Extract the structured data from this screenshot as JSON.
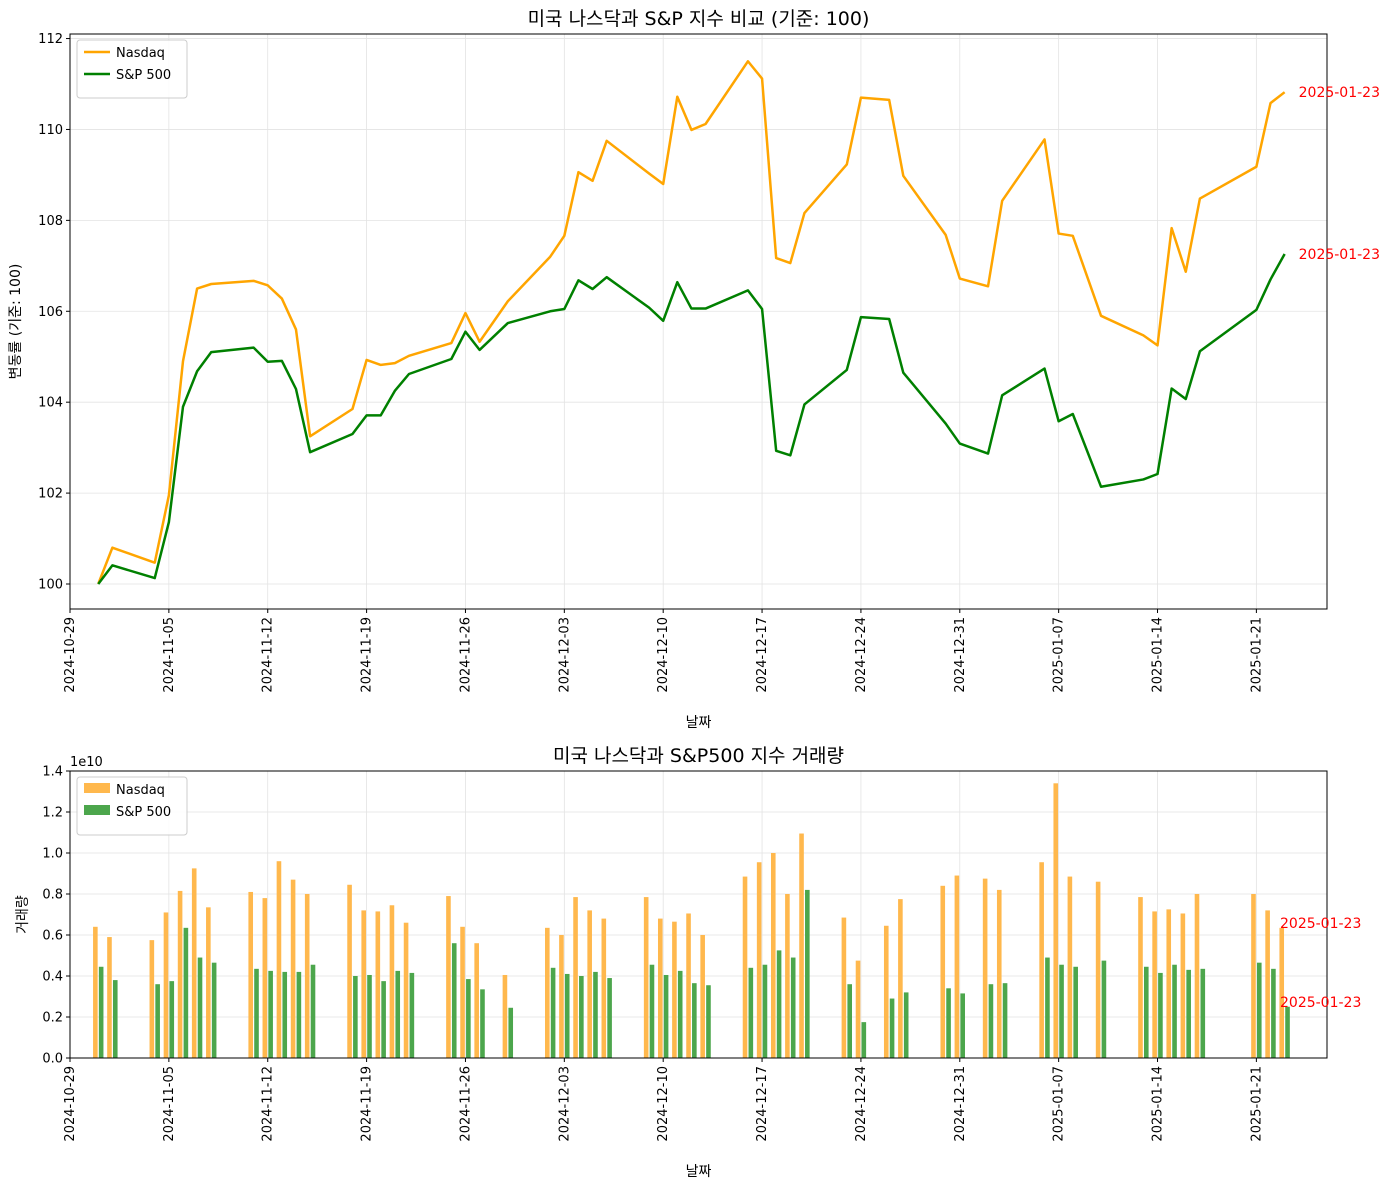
{
  "chart_data": [
    {
      "type": "line",
      "title": "미국 나스닥과 S&P 지수 비교 (기준: 100)",
      "xlabel": "날짜",
      "ylabel": "변동률 (기준: 100)",
      "xlim": [
        "2024-10-29",
        "2025-01-26"
      ],
      "ylim": [
        99.45,
        112.1
      ],
      "yticks": [
        100,
        102,
        104,
        106,
        108,
        110,
        112
      ],
      "xticks": [
        "2024-10-29",
        "2024-11-05",
        "2024-11-12",
        "2024-11-19",
        "2024-11-26",
        "2024-12-03",
        "2024-12-10",
        "2024-12-17",
        "2024-12-24",
        "2024-12-31",
        "2025-01-07",
        "2025-01-14",
        "2025-01-21"
      ],
      "grid": true,
      "legend": "top-left",
      "dates": [
        "2024-10-31",
        "2024-11-01",
        "2024-11-04",
        "2024-11-05",
        "2024-11-06",
        "2024-11-07",
        "2024-11-08",
        "2024-11-11",
        "2024-11-12",
        "2024-11-13",
        "2024-11-14",
        "2024-11-15",
        "2024-11-18",
        "2024-11-19",
        "2024-11-20",
        "2024-11-21",
        "2024-11-22",
        "2024-11-25",
        "2024-11-26",
        "2024-11-27",
        "2024-11-29",
        "2024-12-02",
        "2024-12-03",
        "2024-12-04",
        "2024-12-05",
        "2024-12-06",
        "2024-12-09",
        "2024-12-10",
        "2024-12-11",
        "2024-12-12",
        "2024-12-13",
        "2024-12-16",
        "2024-12-17",
        "2024-12-18",
        "2024-12-19",
        "2024-12-20",
        "2024-12-23",
        "2024-12-24",
        "2024-12-26",
        "2024-12-27",
        "2024-12-30",
        "2024-12-31",
        "2025-01-02",
        "2025-01-03",
        "2025-01-06",
        "2025-01-07",
        "2025-01-08",
        "2025-01-10",
        "2025-01-13",
        "2025-01-14",
        "2025-01-15",
        "2025-01-16",
        "2025-01-17",
        "2025-01-21",
        "2025-01-22",
        "2025-01-23"
      ],
      "series": [
        {
          "name": "Nasdaq",
          "color": "#FFA500",
          "values": [
            100.0,
            100.8,
            100.47,
            101.95,
            104.9,
            106.5,
            106.6,
            106.67,
            106.57,
            106.28,
            105.6,
            103.25,
            103.85,
            104.93,
            104.82,
            104.86,
            105.02,
            105.3,
            105.96,
            105.33,
            106.22,
            107.2,
            107.66,
            109.06,
            108.87,
            109.75,
            109.03,
            108.8,
            110.72,
            109.99,
            110.12,
            111.5,
            111.12,
            107.17,
            107.06,
            108.16,
            109.23,
            110.7,
            110.65,
            108.98,
            107.68,
            106.72,
            106.55,
            108.43,
            109.78,
            107.71,
            107.66,
            105.9,
            105.47,
            105.25,
            107.83,
            106.87,
            108.48,
            109.18,
            110.58,
            110.82
          ]
        },
        {
          "name": "S&P 500",
          "color": "#008000",
          "values": [
            100.0,
            100.41,
            100.13,
            101.36,
            103.9,
            104.68,
            105.1,
            105.2,
            104.89,
            104.91,
            104.29,
            102.9,
            103.3,
            103.71,
            103.71,
            104.25,
            104.62,
            104.95,
            105.55,
            105.15,
            105.74,
            106.0,
            106.05,
            106.68,
            106.49,
            106.75,
            106.08,
            105.79,
            106.64,
            106.06,
            106.06,
            106.46,
            106.05,
            102.93,
            102.83,
            103.95,
            104.71,
            105.87,
            105.83,
            104.65,
            103.53,
            103.09,
            102.87,
            104.15,
            104.74,
            103.58,
            103.74,
            102.14,
            102.3,
            102.42,
            104.3,
            104.07,
            105.12,
            106.03,
            106.7,
            107.26
          ]
        }
      ],
      "annotations": [
        {
          "text": "2025-01-23",
          "x": "2025-01-23",
          "y": 110.82,
          "color": "#FF0000"
        },
        {
          "text": "2025-01-23",
          "x": "2025-01-23",
          "y": 107.26,
          "color": "#FF0000"
        }
      ]
    },
    {
      "type": "bar",
      "title": "미국 나스닥과 S&P500 지수 거래량",
      "xlabel": "날짜",
      "ylabel": "거래량",
      "offset_text": "1e10",
      "xlim": [
        "2024-10-29",
        "2025-01-26"
      ],
      "ylim": [
        0,
        1.4
      ],
      "yticks": [
        "0.0",
        "0.2",
        "0.4",
        "0.6",
        "0.8",
        "1.0",
        "1.2",
        "1.4"
      ],
      "xticks": [
        "2024-10-29",
        "2024-11-05",
        "2024-11-12",
        "2024-11-19",
        "2024-11-26",
        "2024-12-03",
        "2024-12-10",
        "2024-12-17",
        "2024-12-24",
        "2024-12-31",
        "2025-01-07",
        "2025-01-14",
        "2025-01-21"
      ],
      "grid": true,
      "legend": "top-left",
      "dates": [
        "2024-10-31",
        "2024-11-01",
        "2024-11-04",
        "2024-11-05",
        "2024-11-06",
        "2024-11-07",
        "2024-11-08",
        "2024-11-11",
        "2024-11-12",
        "2024-11-13",
        "2024-11-14",
        "2024-11-15",
        "2024-11-18",
        "2024-11-19",
        "2024-11-20",
        "2024-11-21",
        "2024-11-22",
        "2024-11-25",
        "2024-11-26",
        "2024-11-27",
        "2024-11-29",
        "2024-12-02",
        "2024-12-03",
        "2024-12-04",
        "2024-12-05",
        "2024-12-06",
        "2024-12-09",
        "2024-12-10",
        "2024-12-11",
        "2024-12-12",
        "2024-12-13",
        "2024-12-16",
        "2024-12-17",
        "2024-12-18",
        "2024-12-19",
        "2024-12-20",
        "2024-12-23",
        "2024-12-24",
        "2024-12-26",
        "2024-12-27",
        "2024-12-30",
        "2024-12-31",
        "2025-01-02",
        "2025-01-03",
        "2025-01-06",
        "2025-01-07",
        "2025-01-08",
        "2025-01-10",
        "2025-01-13",
        "2025-01-14",
        "2025-01-15",
        "2025-01-16",
        "2025-01-17",
        "2025-01-21",
        "2025-01-22",
        "2025-01-23"
      ],
      "series": [
        {
          "name": "Nasdaq",
          "color": "#FFB84D",
          "values": [
            0.64,
            0.59,
            0.575,
            0.71,
            0.815,
            0.925,
            0.735,
            0.81,
            0.78,
            0.96,
            0.87,
            0.8,
            0.845,
            0.72,
            0.715,
            0.745,
            0.66,
            0.79,
            0.64,
            0.56,
            0.405,
            0.635,
            0.6,
            0.785,
            0.72,
            0.68,
            0.785,
            0.68,
            0.665,
            0.705,
            0.6,
            0.885,
            0.955,
            1.0,
            0.8,
            1.095,
            0.685,
            0.475,
            0.645,
            0.775,
            0.84,
            0.89,
            0.875,
            0.82,
            0.955,
            1.34,
            0.885,
            0.86,
            0.785,
            0.715,
            0.725,
            0.705,
            0.8,
            0.8,
            0.72,
            0.635
          ]
        },
        {
          "name": "S&P 500",
          "color": "#4CA64C",
          "values": [
            0.445,
            0.38,
            0.36,
            0.375,
            0.635,
            0.49,
            0.465,
            0.435,
            0.425,
            0.42,
            0.42,
            0.455,
            0.4,
            0.405,
            0.375,
            0.425,
            0.415,
            0.56,
            0.385,
            0.335,
            0.245,
            0.44,
            0.41,
            0.4,
            0.42,
            0.39,
            0.455,
            0.405,
            0.425,
            0.365,
            0.355,
            0.44,
            0.455,
            0.525,
            0.49,
            0.82,
            0.36,
            0.175,
            0.29,
            0.32,
            0.34,
            0.315,
            0.36,
            0.365,
            0.49,
            0.455,
            0.445,
            0.475,
            0.445,
            0.415,
            0.455,
            0.43,
            0.435,
            0.465,
            0.435,
            0.25
          ]
        }
      ],
      "annotations": [
        {
          "text": "2025-01-23",
          "color": "#FF0000"
        },
        {
          "text": "2025-01-23",
          "color": "#FF0000"
        }
      ]
    }
  ]
}
